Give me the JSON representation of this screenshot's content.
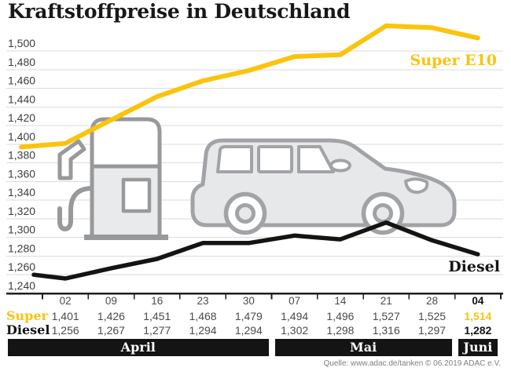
{
  "title": "Kraftstoffpreise in Deutschland",
  "legend": {
    "super": "Super E10",
    "diesel": "Diesel"
  },
  "table": {
    "super_label": "Super",
    "diesel_label": "Diesel"
  },
  "source": "Quelle: www.adac.de/tanken  © 06.2019  ADAC e.V.",
  "colors": {
    "super": "#FBC30B",
    "diesel": "#141414",
    "grid": "#DBDBDB",
    "axis": "#1F1F1F",
    "value_text": "#4A4A4A",
    "band_bg": "#141414",
    "band_text": "#FFFFFF",
    "illustration_stroke": "#A1A3A6",
    "illustration_fill": "#E7E8E9"
  },
  "chart_data": {
    "type": "line",
    "title": "Kraftstoffpreise in Deutschland",
    "categories": [
      "02",
      "09",
      "16",
      "23",
      "30",
      "07",
      "14",
      "21",
      "28",
      "04"
    ],
    "months": [
      {
        "label": "April",
        "span": 5
      },
      {
        "label": "Mai",
        "span": 4
      },
      {
        "label": "Juni",
        "span": 1
      }
    ],
    "ylim": [
      1240,
      1500
    ],
    "ytick_step": 20,
    "grid": true,
    "value_format": "german-comma-thousandths",
    "series": [
      {
        "name": "Super E10",
        "color": "#FBC30B",
        "values": [
          1401,
          1426,
          1451,
          1468,
          1479,
          1494,
          1496,
          1527,
          1525,
          1514
        ],
        "lead_in": 1397
      },
      {
        "name": "Diesel",
        "color": "#141414",
        "values": [
          1256,
          1267,
          1277,
          1294,
          1294,
          1302,
          1298,
          1316,
          1297,
          1282
        ],
        "lead_in": 1260
      }
    ]
  }
}
